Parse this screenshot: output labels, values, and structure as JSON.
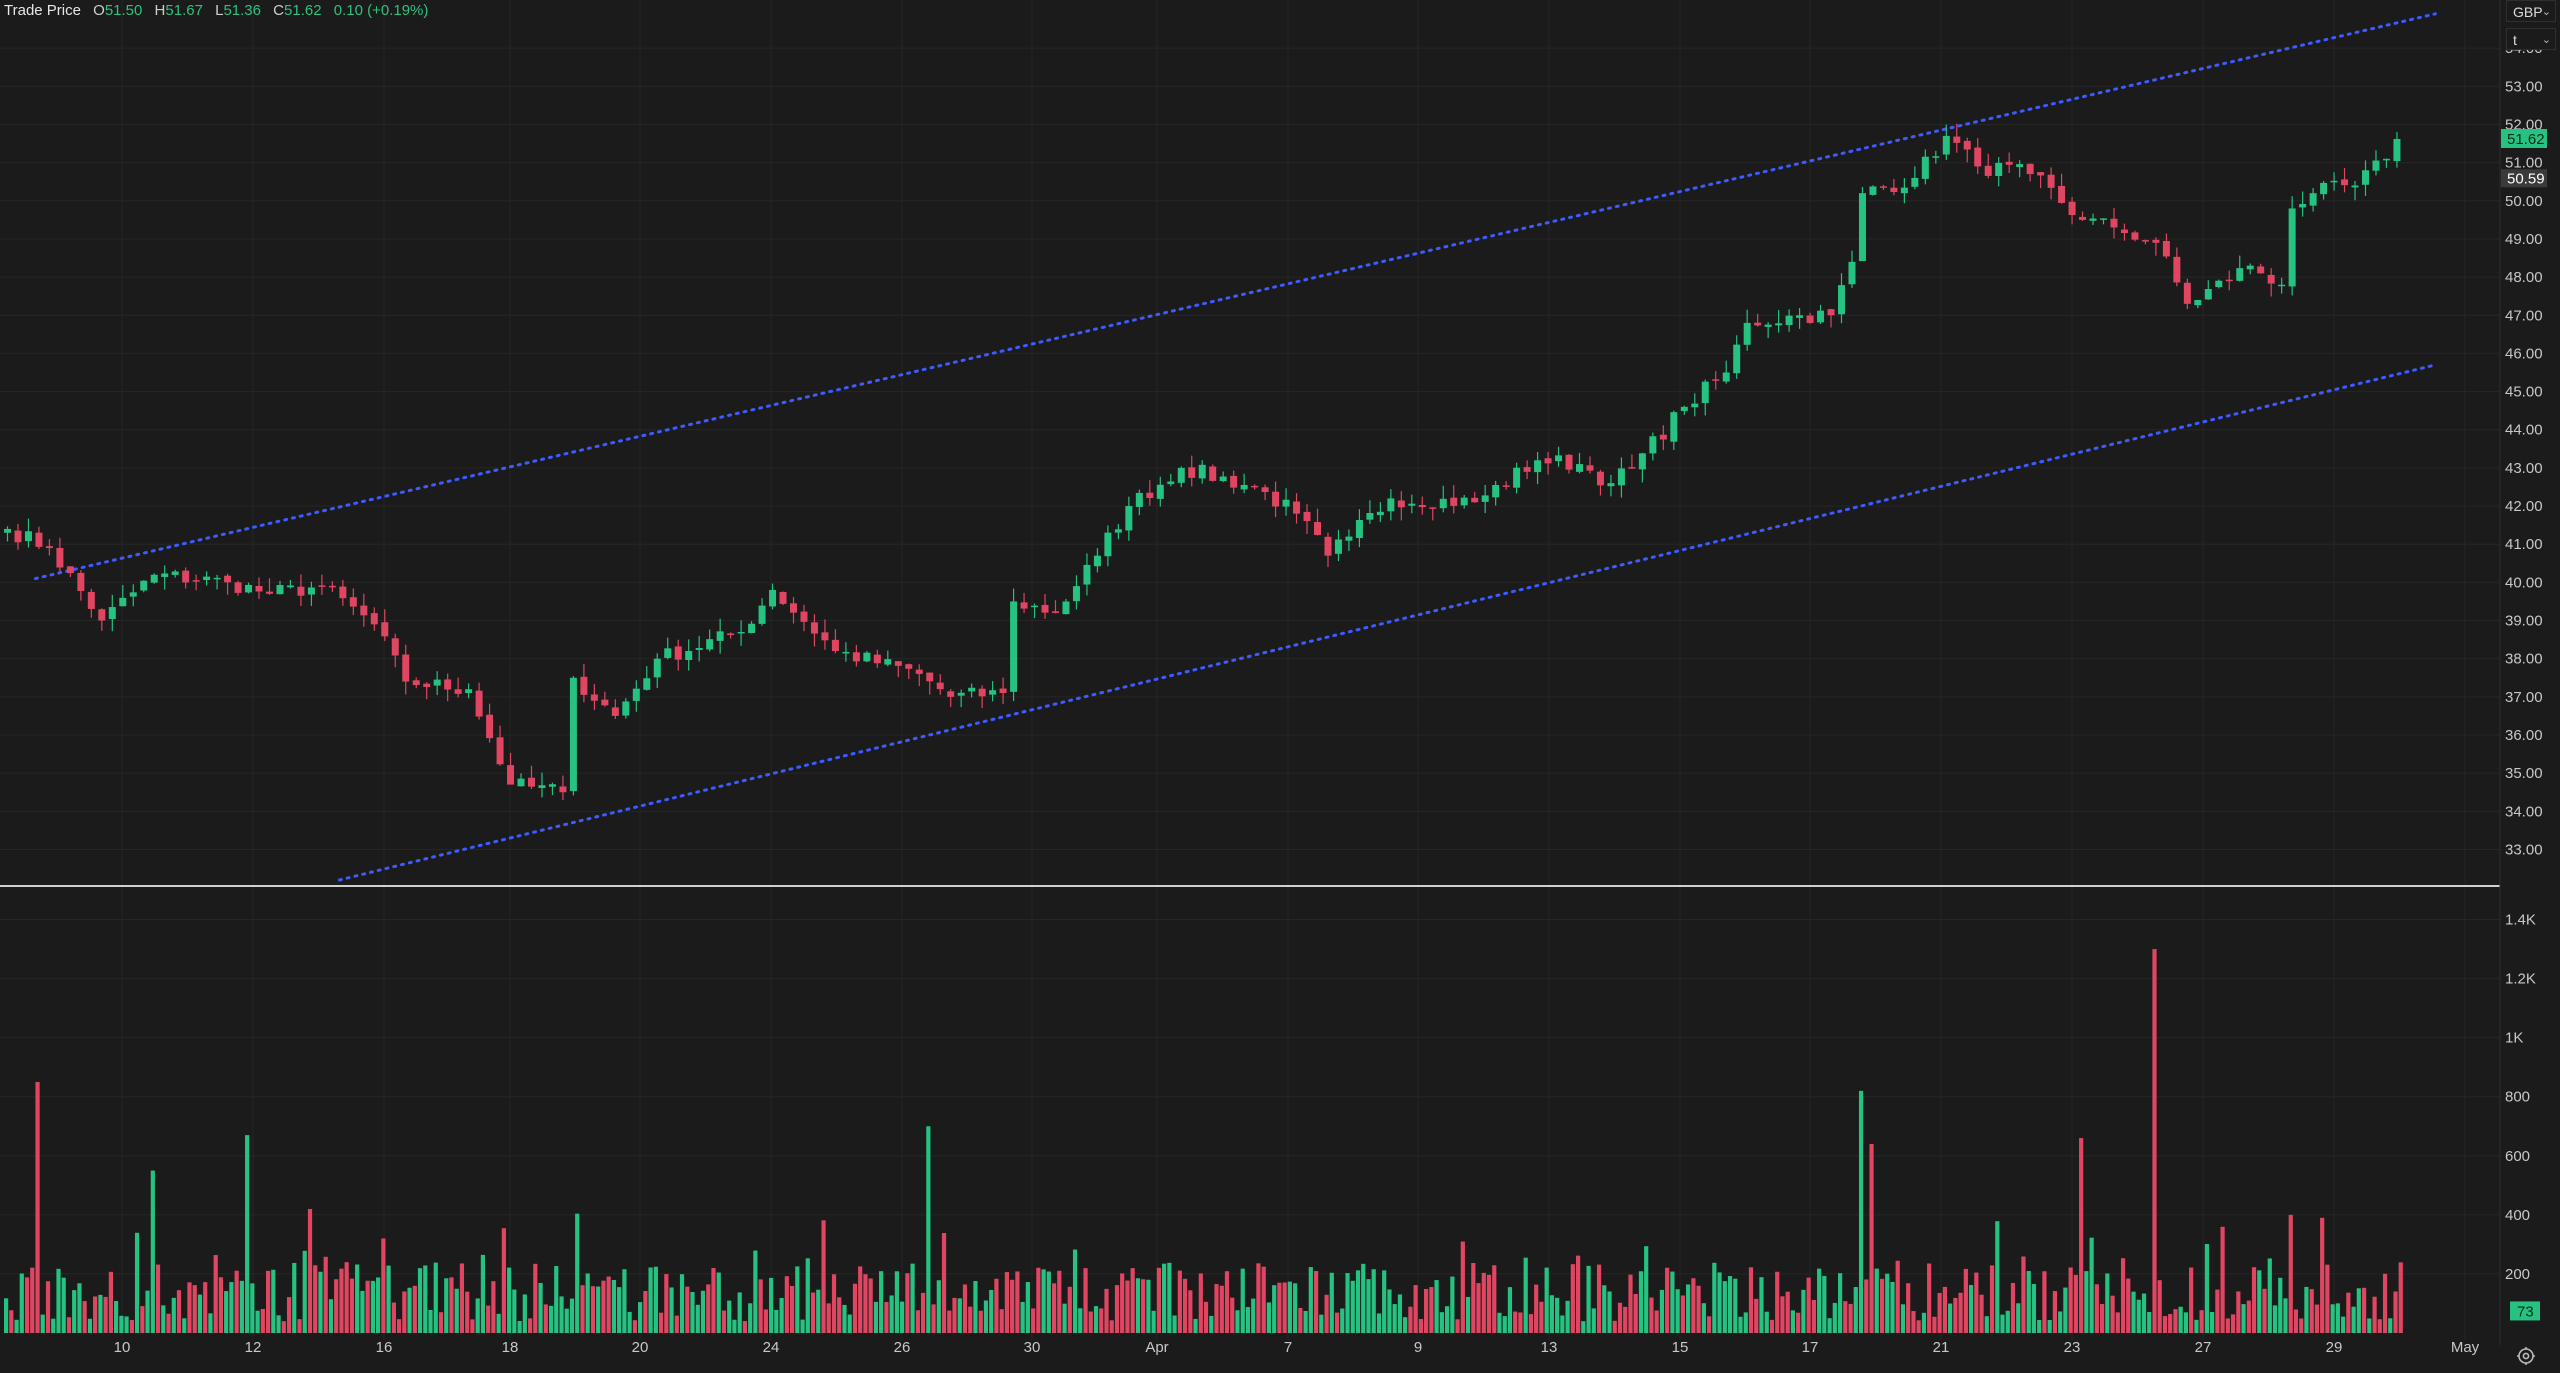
{
  "legend": {
    "title": "Trade Price",
    "o_label": "O",
    "o_value": "51.50",
    "h_label": "H",
    "h_value": "51.67",
    "l_label": "L",
    "l_value": "51.36",
    "c_label": "C",
    "c_value": "51.62",
    "change": "0.10 (+0.19%)"
  },
  "controls": {
    "currency": "GBP",
    "scale": "t",
    "chevron_icon": "chevron-down-icon",
    "settings_icon": "gear-icon"
  },
  "colors": {
    "background": "#1b1b1b",
    "up": "#26c281",
    "down": "#e04562",
    "channel": "#3d5bff",
    "grid": "#262626",
    "axis_text": "#c8c8c8",
    "divider": "#d0d0d0"
  },
  "chart_data": [
    {
      "type": "candlestick",
      "title": "Trade Price",
      "currency": "GBP",
      "ylim": [
        32.2,
        55.0
      ],
      "y_ticks": [
        "33.00",
        "34.00",
        "35.00",
        "36.00",
        "37.00",
        "38.00",
        "39.00",
        "40.00",
        "41.00",
        "42.00",
        "43.00",
        "44.00",
        "45.00",
        "46.00",
        "47.00",
        "48.00",
        "49.00",
        "50.00",
        "51.00",
        "52.00",
        "53.00",
        "54.00"
      ],
      "x_ticks": [
        "10",
        "12",
        "16",
        "18",
        "20",
        "24",
        "26",
        "30",
        "Apr",
        "7",
        "9",
        "13",
        "15",
        "17",
        "21",
        "23",
        "27",
        "29",
        "May"
      ],
      "grid": true,
      "last_price": "51.62",
      "reference_price": "50.59",
      "price_path": [
        [
          0,
          41.4
        ],
        [
          4,
          40.9
        ],
        [
          9,
          39.0
        ],
        [
          14,
          40.2
        ],
        [
          21,
          40.0
        ],
        [
          25,
          39.7
        ],
        [
          30,
          39.9
        ],
        [
          35,
          38.9
        ],
        [
          38,
          37.4
        ],
        [
          44,
          37.2
        ],
        [
          48,
          34.7
        ],
        [
          53,
          34.5
        ],
        [
          54,
          37.5
        ],
        [
          58,
          36.5
        ],
        [
          62,
          38.0
        ],
        [
          70,
          38.7
        ],
        [
          73,
          39.8
        ],
        [
          79,
          38.2
        ],
        [
          87,
          37.6
        ],
        [
          90,
          37.0
        ],
        [
          95,
          37.1
        ],
        [
          96,
          39.5
        ],
        [
          100,
          39.2
        ],
        [
          104,
          40.7
        ],
        [
          107,
          42.0
        ],
        [
          112,
          43.0
        ],
        [
          119,
          42.5
        ],
        [
          123,
          41.8
        ],
        [
          126,
          40.7
        ],
        [
          128,
          41.2
        ],
        [
          132,
          42.2
        ],
        [
          140,
          42.1
        ],
        [
          146,
          43.2
        ],
        [
          150,
          43.1
        ],
        [
          153,
          42.6
        ],
        [
          155,
          43.0
        ],
        [
          160,
          44.6
        ],
        [
          164,
          45.5
        ],
        [
          166,
          46.8
        ],
        [
          171,
          47.0
        ],
        [
          174,
          47.0
        ],
        [
          176,
          48.4
        ],
        [
          177,
          50.2
        ],
        [
          182,
          50.6
        ],
        [
          185,
          51.7
        ],
        [
          188,
          50.9
        ],
        [
          193,
          50.7
        ],
        [
          198,
          49.5
        ],
        [
          201,
          49.3
        ],
        [
          205,
          48.9
        ],
        [
          208,
          47.3
        ],
        [
          214,
          48.3
        ],
        [
          217,
          47.8
        ],
        [
          218,
          49.8
        ],
        [
          220,
          50.2
        ],
        [
          224,
          50.4
        ],
        [
          227,
          51.1
        ],
        [
          228,
          51.62
        ]
      ],
      "channel_upper": {
        "x": [
          3,
          232
        ],
        "y": [
          40.1,
          54.9
        ]
      },
      "channel_lower": {
        "x": [
          32,
          232
        ],
        "y": [
          32.2,
          45.7
        ]
      }
    },
    {
      "type": "bar",
      "title": "Volume",
      "ylim": [
        0,
        1500
      ],
      "y_ticks": [
        "200",
        "400",
        "600",
        "800",
        "1K",
        "1.2K",
        "1.4K"
      ],
      "last_volume": "73",
      "spikes": [
        [
          3,
          850
        ],
        [
          14,
          550
        ],
        [
          23,
          670
        ],
        [
          29,
          420
        ],
        [
          88,
          700
        ],
        [
          177,
          820
        ],
        [
          178,
          640
        ],
        [
          198,
          660
        ],
        [
          205,
          1300
        ],
        [
          218,
          400
        ],
        [
          221,
          390
        ]
      ],
      "base_seed": 7
    }
  ]
}
